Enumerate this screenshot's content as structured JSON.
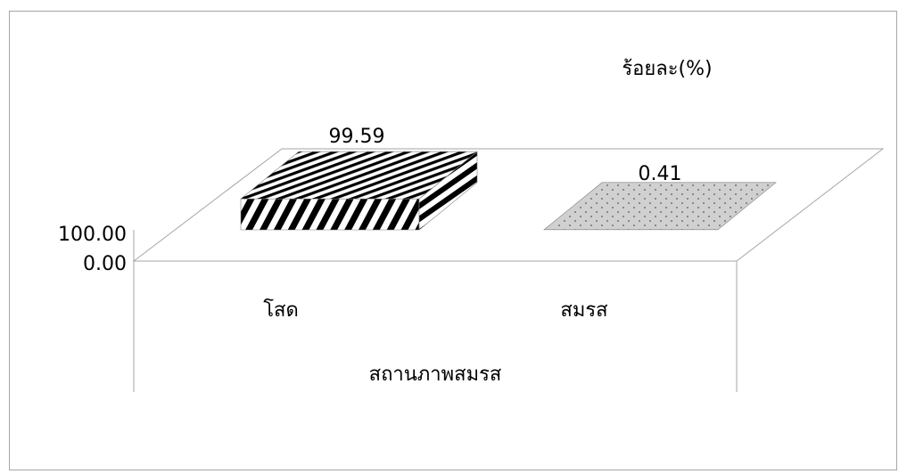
{
  "chart_data": {
    "type": "bar",
    "categories": [
      "โสด",
      "สมรส"
    ],
    "values": [
      99.59,
      0.41
    ],
    "value_labels": [
      "99.59",
      "0.41"
    ],
    "unit_label": "ร้อยละ(%)",
    "xlabel": "สถานภาพสมรส",
    "ylabel": "",
    "ylim": [
      0,
      100
    ],
    "y_tick_labels": [
      "100.00",
      "0.00"
    ],
    "grid": false,
    "legend": "none",
    "style": "3d",
    "fills": [
      "diagonal-stripes",
      "dotted-gray"
    ]
  }
}
